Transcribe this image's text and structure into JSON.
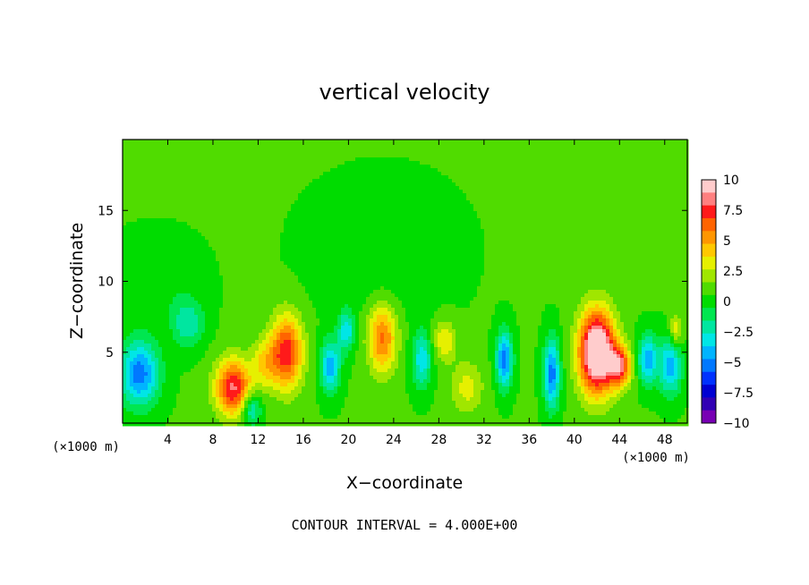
{
  "chart_data": {
    "type": "heatmap",
    "title": "vertical velocity",
    "xlabel": "X−coordinate",
    "ylabel": "Z−coordinate",
    "x_unit": "(×1000 m)",
    "xlim": [
      0,
      50
    ],
    "ylim": [
      0,
      20
    ],
    "x_ticks": [
      4,
      8,
      12,
      16,
      20,
      24,
      28,
      32,
      36,
      40,
      44,
      48
    ],
    "y_ticks": [
      5,
      10,
      15
    ],
    "footer": "CONTOUR INTERVAL = 4.000E+00",
    "colorbar": {
      "range": [
        -10,
        10
      ],
      "tick_values": [
        10,
        7.5,
        5,
        2.5,
        0,
        -2.5,
        -5,
        -7.5,
        -10
      ],
      "tick_labels": [
        "10",
        "7.5",
        "5",
        "2.5",
        "0",
        "−2.5",
        "−5",
        "−7.5",
        "−10"
      ],
      "colors": [
        "#ffcccc",
        "#ff8080",
        "#ff1a1a",
        "#ff6400",
        "#ff9600",
        "#ffc800",
        "#e6f000",
        "#a0e600",
        "#50dc00",
        "#00dc00",
        "#00e650",
        "#00e6a0",
        "#00e6e6",
        "#00b4ff",
        "#0078ff",
        "#0032ff",
        "#0000d2",
        "#3200b4",
        "#7800b4"
      ]
    },
    "features": [
      {
        "x": 1.5,
        "z": 3.5,
        "w": -6,
        "sx": 1.2,
        "sz": 1.6
      },
      {
        "x": 5.8,
        "z": 7.0,
        "w": -3,
        "sx": 1.0,
        "sz": 1.2
      },
      {
        "x": 9.8,
        "z": 2.5,
        "w": 7.5,
        "sx": 1.1,
        "sz": 1.4
      },
      {
        "x": 14.5,
        "z": 5.0,
        "w": 7,
        "sx": 1.0,
        "sz": 1.8
      },
      {
        "x": 12.6,
        "z": 4.2,
        "w": 3,
        "sx": 0.8,
        "sz": 1.2
      },
      {
        "x": 11.4,
        "z": 1.0,
        "w": -4,
        "sx": 0.6,
        "sz": 0.8
      },
      {
        "x": 18.4,
        "z": 4.0,
        "w": -5,
        "sx": 0.6,
        "sz": 1.3
      },
      {
        "x": 19.8,
        "z": 6.5,
        "w": -4,
        "sx": 0.5,
        "sz": 1.0
      },
      {
        "x": 23.0,
        "z": 6.0,
        "w": 5.5,
        "sx": 0.9,
        "sz": 1.7
      },
      {
        "x": 26.5,
        "z": 4.5,
        "w": -4,
        "sx": 0.6,
        "sz": 1.4
      },
      {
        "x": 28.5,
        "z": 5.8,
        "w": 3,
        "sx": 0.7,
        "sz": 1.0
      },
      {
        "x": 30.5,
        "z": 2.5,
        "w": 2.5,
        "sx": 1.0,
        "sz": 1.3
      },
      {
        "x": 33.8,
        "z": 4.5,
        "w": -6,
        "sx": 0.5,
        "sz": 1.4
      },
      {
        "x": 38.0,
        "z": 3.5,
        "w": -6,
        "sx": 0.5,
        "sz": 1.7
      },
      {
        "x": 42.0,
        "z": 5.0,
        "w": 12,
        "sx": 1.1,
        "sz": 2.0
      },
      {
        "x": 44.0,
        "z": 4.0,
        "w": 7,
        "sx": 0.7,
        "sz": 1.0
      },
      {
        "x": 46.5,
        "z": 4.5,
        "w": -5,
        "sx": 0.6,
        "sz": 1.2
      },
      {
        "x": 48.5,
        "z": 4.0,
        "w": -5,
        "sx": 0.7,
        "sz": 1.4
      },
      {
        "x": 49.0,
        "z": 6.5,
        "w": 3,
        "sx": 0.4,
        "sz": 0.8
      },
      {
        "x": 23.0,
        "z": 12.0,
        "w": -1,
        "sx": 4.0,
        "sz": 3.0
      },
      {
        "x": 3.0,
        "z": 10.0,
        "w": -1,
        "sx": 2.5,
        "sz": 2.0
      }
    ]
  }
}
